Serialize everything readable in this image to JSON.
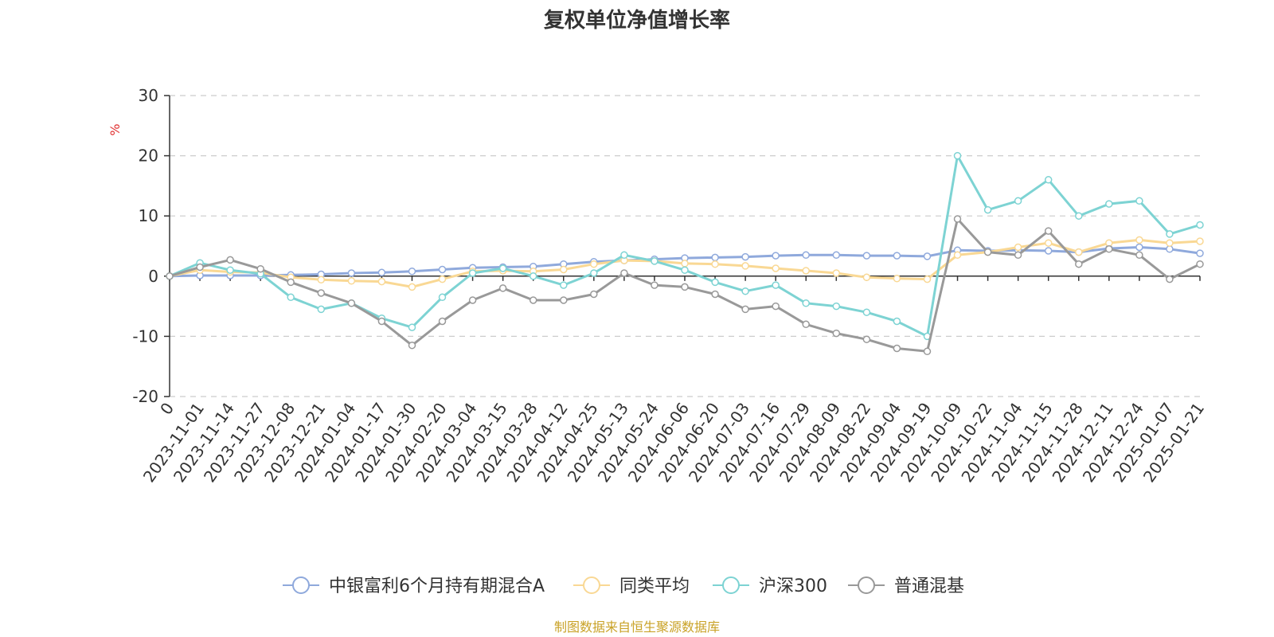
{
  "chart_data": {
    "type": "line",
    "title": "复权单位净值增长率",
    "ylabel": "%",
    "ylim": [
      -20,
      30
    ],
    "yticks": [
      -20,
      -10,
      0,
      10,
      20,
      30
    ],
    "grid": true,
    "legend_position": "bottom",
    "source": "制图数据来自恒生聚源数据库",
    "x_tick_labels": [
      "0",
      "2023-11-01",
      "2023-11-14",
      "2023-11-27",
      "2023-12-08",
      "2023-12-21",
      "2024-01-04",
      "2024-01-17",
      "2024-01-30",
      "2024-02-20",
      "2024-03-04",
      "2024-03-15",
      "2024-03-28",
      "2024-04-12",
      "2024-04-25",
      "2024-05-13",
      "2024-05-24",
      "2024-06-06",
      "2024-06-20",
      "2024-07-03",
      "2024-07-16",
      "2024-07-29",
      "2024-08-09",
      "2024-08-22",
      "2024-09-04",
      "2024-09-19",
      "2024-10-09",
      "2024-10-22",
      "2024-11-04",
      "2024-11-15",
      "2024-11-28",
      "2024-12-11",
      "2024-12-24",
      "2025-01-07",
      "2025-01-21"
    ],
    "series": [
      {
        "name": "中银富利6个月持有期混合A",
        "color": "#8fa9dc",
        "values": [
          0,
          0.1,
          0.1,
          0.1,
          0.2,
          0.3,
          0.5,
          0.6,
          0.8,
          1.1,
          1.4,
          1.5,
          1.6,
          2.0,
          2.4,
          2.6,
          2.8,
          3.0,
          3.1,
          3.2,
          3.4,
          3.5,
          3.5,
          3.4,
          3.4,
          3.3,
          4.3,
          4.2,
          4.3,
          4.2,
          4.0,
          4.6,
          4.8,
          4.5,
          3.8
        ]
      },
      {
        "name": "同类平均",
        "color": "#f9d894",
        "values": [
          0,
          1.0,
          0.7,
          0.6,
          -0.2,
          -0.6,
          -0.8,
          -0.9,
          -1.8,
          -0.5,
          0.8,
          0.9,
          0.8,
          1.1,
          2.0,
          2.6,
          2.5,
          2.1,
          2.0,
          1.7,
          1.3,
          0.9,
          0.5,
          -0.2,
          -0.4,
          -0.5,
          3.5,
          4.0,
          4.8,
          5.5,
          4.0,
          5.5,
          6.0,
          5.5,
          5.8
        ]
      },
      {
        "name": "沪深300",
        "color": "#7dd3d3",
        "values": [
          0,
          2.2,
          1.0,
          0.4,
          -3.5,
          -5.5,
          -4.5,
          -7.0,
          -8.5,
          -3.5,
          0.5,
          1.3,
          0.0,
          -1.5,
          0.5,
          3.5,
          2.5,
          1.0,
          -1.0,
          -2.5,
          -1.5,
          -4.5,
          -5.0,
          -6.0,
          -7.5,
          -10.0,
          20.0,
          11.0,
          12.5,
          16.0,
          10.0,
          12.0,
          12.5,
          7.0,
          8.5
        ]
      },
      {
        "name": "普通混基",
        "color": "#999999",
        "values": [
          0,
          1.5,
          2.7,
          1.2,
          -1.0,
          -2.8,
          -4.5,
          -7.5,
          -11.5,
          -7.5,
          -4.0,
          -2.0,
          -4.0,
          -4.0,
          -3.0,
          0.5,
          -1.5,
          -1.8,
          -3.0,
          -5.5,
          -5.0,
          -8.0,
          -9.5,
          -10.5,
          -12.0,
          -12.5,
          9.5,
          4.0,
          3.5,
          7.5,
          2.0,
          4.5,
          3.5,
          -0.5,
          2.0
        ]
      }
    ]
  }
}
